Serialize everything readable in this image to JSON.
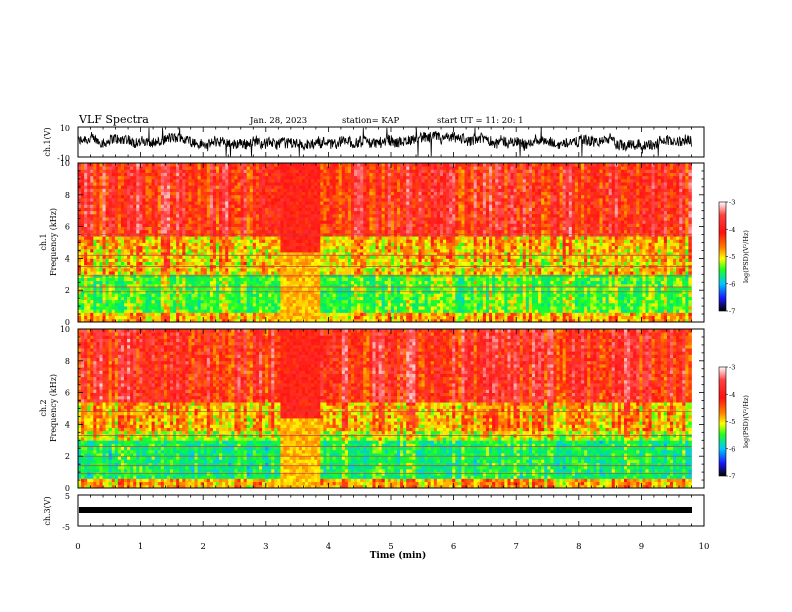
{
  "header": {
    "title": "VLF Spectra",
    "date": "Jan. 28, 2023",
    "station": "station= KAP",
    "start_ut": "start UT =  11: 20: 1"
  },
  "chart_data": [
    {
      "type": "line",
      "panel": "ch1-waveform",
      "ylabel": "ch.1(V)",
      "ylim": [
        -10,
        10
      ],
      "y_ticks": [
        "10",
        "-10"
      ],
      "xlim": [
        0,
        10
      ],
      "grid": false
    },
    {
      "type": "heatmap",
      "panel": "ch1-spectrogram",
      "ylabel": "ch.1\nFrequency (kHz)",
      "ylim": [
        0,
        10
      ],
      "y_ticks": [
        "0",
        "2",
        "4",
        "6",
        "8",
        "10"
      ],
      "xlim": [
        0,
        10
      ],
      "data_end_min": 9.8,
      "gap_interval_min": [
        3.2,
        3.85
      ],
      "colorbar": {
        "label": "log(PSD)(V²/Hz)",
        "range": [
          -7,
          -3
        ],
        "ticks": [
          "-3",
          "-4",
          "-5",
          "-6",
          "-7"
        ]
      }
    },
    {
      "type": "heatmap",
      "panel": "ch2-spectrogram",
      "ylabel": "ch.2\nFrequency (kHz)",
      "ylim": [
        0,
        10
      ],
      "y_ticks": [
        "0",
        "2",
        "4",
        "6",
        "8",
        "10"
      ],
      "xlim": [
        0,
        10
      ],
      "data_end_min": 9.8,
      "gap_interval_min": [
        3.2,
        3.85
      ],
      "colorbar": {
        "label": "log(PSD)(V²/Hz)",
        "range": [
          -7,
          -3
        ],
        "ticks": [
          "-3",
          "-4",
          "-5",
          "-6",
          "-7"
        ]
      }
    },
    {
      "type": "line",
      "panel": "ch3-waveform",
      "ylabel": "ch.3(V)",
      "ylim": [
        -5,
        5
      ],
      "y_ticks": [
        "5",
        "-5"
      ],
      "xlim": [
        0,
        10
      ],
      "xlabel": "Time (min)",
      "x_ticks": [
        "0",
        "1",
        "2",
        "3",
        "4",
        "5",
        "6",
        "7",
        "8",
        "9",
        "10"
      ],
      "grid": false
    }
  ],
  "colors": {
    "palette": [
      "#000000",
      "#1a1aff",
      "#00c8ff",
      "#00e080",
      "#20ff20",
      "#ffff00",
      "#ff8000",
      "#ff1010",
      "#ff6060",
      "#ffffff"
    ]
  }
}
